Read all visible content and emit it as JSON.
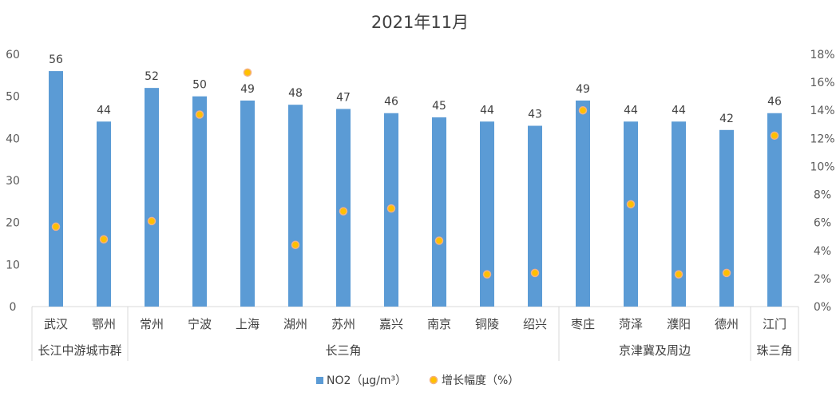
{
  "chart_data": {
    "type": "bar",
    "title": "2021年11月",
    "categories": [
      "武汉",
      "鄂州",
      "常州",
      "宁波",
      "上海",
      "湖州",
      "苏州",
      "嘉兴",
      "南京",
      "铜陵",
      "绍兴",
      "枣庄",
      "菏泽",
      "濮阳",
      "德州",
      "江门"
    ],
    "groups": [
      {
        "label": "长江中游城市群",
        "count": 2
      },
      {
        "label": "长三角",
        "count": 9
      },
      {
        "label": "京津冀及周边",
        "count": 4
      },
      {
        "label": "珠三角",
        "count": 1
      }
    ],
    "series": [
      {
        "name": "NO2（μg/m³）",
        "type": "bar",
        "axis": "left",
        "color": "#5b9bd5",
        "values": [
          56,
          44,
          52,
          50,
          49,
          48,
          47,
          46,
          45,
          44,
          43,
          49,
          44,
          44,
          42,
          46
        ]
      },
      {
        "name": "增长幅度（%）",
        "type": "scatter",
        "axis": "right",
        "color": "#ffc000",
        "values": [
          5.7,
          4.8,
          6.1,
          13.7,
          16.7,
          4.4,
          6.8,
          7.0,
          4.7,
          2.3,
          2.4,
          14.0,
          7.3,
          2.3,
          2.4,
          12.2
        ]
      }
    ],
    "y_left": {
      "min": 0,
      "max": 60,
      "ticks": [
        "0",
        "10",
        "20",
        "30",
        "40",
        "50",
        "60"
      ]
    },
    "y_right": {
      "min": 0,
      "max": 18,
      "ticks": [
        "0%",
        "2%",
        "4%",
        "6%",
        "8%",
        "10%",
        "12%",
        "14%",
        "16%",
        "18%"
      ]
    },
    "grid": false,
    "legend_position": "bottom"
  }
}
